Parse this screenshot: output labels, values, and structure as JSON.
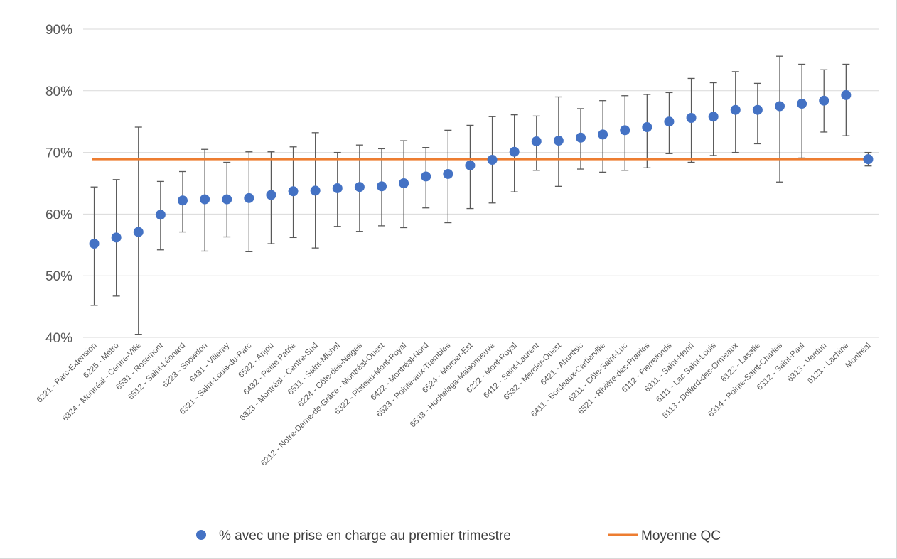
{
  "chart_data": {
    "type": "scatter",
    "y_unit": "%",
    "ylim": [
      40,
      90
    ],
    "yticks": [
      40,
      50,
      60,
      70,
      80,
      90
    ],
    "grid": true,
    "legend_position": "bottom",
    "categories": [
      "6221 - Parc-Extension",
      "6225 - Métro",
      "6324 - Montréal - Centre-Ville",
      "6531 - Rosemont",
      "6512 - Saint-Léonard",
      "6223 - Snowdon",
      "6431 - Villeray",
      "6321 - Saint-Louis-du-Parc",
      "6522 - Anjou",
      "6432 - Petite Patrie",
      "6323 - Montréal - Centre-Sud",
      "6511 - Saint-Michel",
      "6224 - Côte-des-Neiges",
      "6212 - Notre-Dame-de-Grâce - Montréal-Ouest",
      "6322 - Plateau-Mont-Royal",
      "6422 - Montréal-Nord",
      "6523 - Pointe-aux-Trembles",
      "6524 - Mercier-Est",
      "6533 - Hochelaga-Maisonneuve",
      "6222 - Mont-Royal",
      "6412 - Saint-Laurent",
      "6532 - Mercier-Ouest",
      "6421 - Ahuntsic",
      "6411 - Bordeaux-Cartierville",
      "6211 - Côte-Saint-Luc",
      "6521 - Rivière-des-Prairies",
      "6112 - Pierrefonds",
      "6311 - Saint-Henri",
      "6111 - Lac Saint-Louis",
      "6113 - Dollard-des-Ormeaux",
      "6122 - Lasalle",
      "6314 - Pointe-Saint-Charles",
      "6312 - Saint-Paul",
      "6313 - Verdun",
      "6121 - Lachine",
      "Montréal"
    ],
    "series": [
      {
        "name": "% avec une prise en charge au premier trimestre",
        "color": "#4472C4",
        "values": [
          55.2,
          56.2,
          57.1,
          59.9,
          62.2,
          62.4,
          62.4,
          62.6,
          63.1,
          63.7,
          63.8,
          64.2,
          64.4,
          64.5,
          65.0,
          66.1,
          66.5,
          67.9,
          68.8,
          70.1,
          71.8,
          71.9,
          72.4,
          72.9,
          73.6,
          74.1,
          75.0,
          75.6,
          75.8,
          76.9,
          76.9,
          77.5,
          77.9,
          78.4,
          79.3,
          68.9
        ],
        "lower": [
          45.2,
          46.7,
          40.5,
          54.2,
          57.1,
          54.0,
          56.3,
          53.9,
          55.2,
          56.2,
          54.5,
          58.0,
          57.2,
          58.1,
          57.8,
          61.0,
          58.6,
          60.9,
          61.8,
          63.6,
          67.1,
          64.5,
          67.3,
          66.8,
          67.1,
          67.5,
          69.8,
          68.4,
          69.5,
          70.0,
          71.4,
          65.2,
          69.1,
          73.3,
          72.7,
          67.8
        ],
        "upper": [
          64.4,
          65.6,
          74.1,
          65.3,
          66.9,
          70.5,
          68.4,
          70.1,
          70.1,
          70.9,
          73.2,
          70.0,
          71.2,
          70.6,
          71.9,
          70.8,
          73.6,
          74.4,
          75.8,
          76.1,
          75.9,
          79.0,
          77.1,
          78.4,
          79.2,
          79.4,
          79.7,
          82.0,
          81.3,
          83.1,
          81.2,
          85.6,
          84.3,
          83.4,
          84.3,
          70.0
        ]
      },
      {
        "name": "Moyenne QC",
        "color": "#ED7D31",
        "value": 68.9
      }
    ]
  }
}
